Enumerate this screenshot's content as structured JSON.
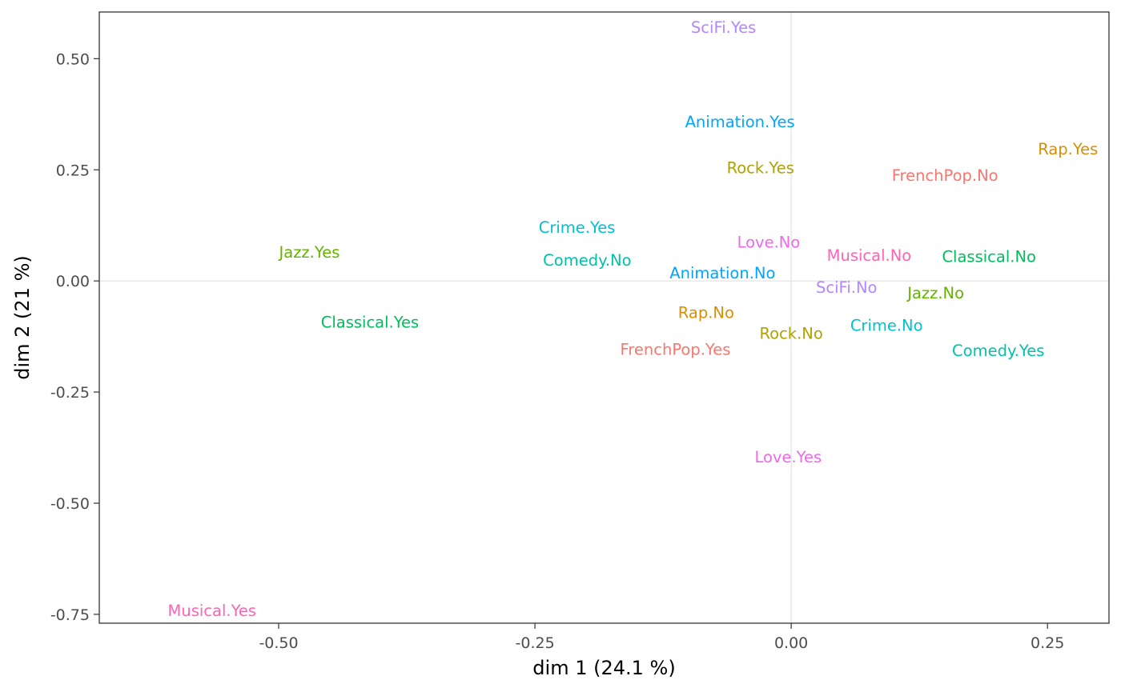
{
  "chart_data": {
    "type": "scatter",
    "title": "",
    "xlabel": "dim 1 (24.1 %)",
    "ylabel": "dim 2 (21 %)",
    "xlim": [
      -0.675,
      0.31
    ],
    "ylim": [
      -0.77,
      0.605
    ],
    "xticks": [
      -0.5,
      -0.25,
      0.0,
      0.25
    ],
    "xtick_labels": [
      "-0.50",
      "-0.25",
      "0.00",
      "0.25"
    ],
    "yticks": [
      0.5,
      0.25,
      0.0,
      -0.25,
      -0.5,
      -0.75
    ],
    "ytick_labels": [
      "0.50",
      "0.25",
      "0.00",
      "-0.25",
      "-0.50",
      "-0.75"
    ],
    "reference_lines": {
      "x": 0,
      "y": 0
    },
    "grid": false,
    "legend": "none",
    "points": [
      {
        "label": "SciFi.Yes",
        "x": -0.066,
        "y": 0.571,
        "color": "#B385FF"
      },
      {
        "label": "Animation.Yes",
        "x": -0.05,
        "y": 0.358,
        "color": "#00A5FF"
      },
      {
        "label": "Rap.Yes",
        "x": 0.27,
        "y": 0.297,
        "color": "#DB8E00"
      },
      {
        "label": "Rock.Yes",
        "x": -0.03,
        "y": 0.255,
        "color": "#AEA200"
      },
      {
        "label": "FrenchPop.No",
        "x": 0.15,
        "y": 0.238,
        "color": "#F8766D"
      },
      {
        "label": "Crime.Yes",
        "x": -0.209,
        "y": 0.121,
        "color": "#00C1D4"
      },
      {
        "label": "Love.No",
        "x": -0.022,
        "y": 0.088,
        "color": "#EF67EB"
      },
      {
        "label": "Jazz.Yes",
        "x": -0.47,
        "y": 0.065,
        "color": "#64B200"
      },
      {
        "label": "Musical.No",
        "x": 0.076,
        "y": 0.058,
        "color": "#FF63B6"
      },
      {
        "label": "Classical.No",
        "x": 0.193,
        "y": 0.055,
        "color": "#00BD5C"
      },
      {
        "label": "Comedy.No",
        "x": -0.199,
        "y": 0.047,
        "color": "#00C1A7"
      },
      {
        "label": "Animation.No",
        "x": -0.067,
        "y": 0.018,
        "color": "#00A5FF"
      },
      {
        "label": "SciFi.No",
        "x": 0.054,
        "y": -0.014,
        "color": "#B385FF"
      },
      {
        "label": "Jazz.No",
        "x": 0.141,
        "y": -0.027,
        "color": "#64B200"
      },
      {
        "label": "Rap.No",
        "x": -0.083,
        "y": -0.071,
        "color": "#DB8E00"
      },
      {
        "label": "Classical.Yes",
        "x": -0.411,
        "y": -0.092,
        "color": "#00BD5C"
      },
      {
        "label": "Crime.No",
        "x": 0.093,
        "y": -0.1,
        "color": "#00C1D4"
      },
      {
        "label": "Rock.No",
        "x": 0.0,
        "y": -0.118,
        "color": "#AEA200"
      },
      {
        "label": "FrenchPop.Yes",
        "x": -0.113,
        "y": -0.154,
        "color": "#F8766D"
      },
      {
        "label": "Comedy.Yes",
        "x": 0.202,
        "y": -0.156,
        "color": "#00C1A7"
      },
      {
        "label": "Love.Yes",
        "x": -0.003,
        "y": -0.396,
        "color": "#EF67EB"
      },
      {
        "label": "Musical.Yes",
        "x": -0.565,
        "y": -0.741,
        "color": "#FF63B6"
      }
    ]
  }
}
